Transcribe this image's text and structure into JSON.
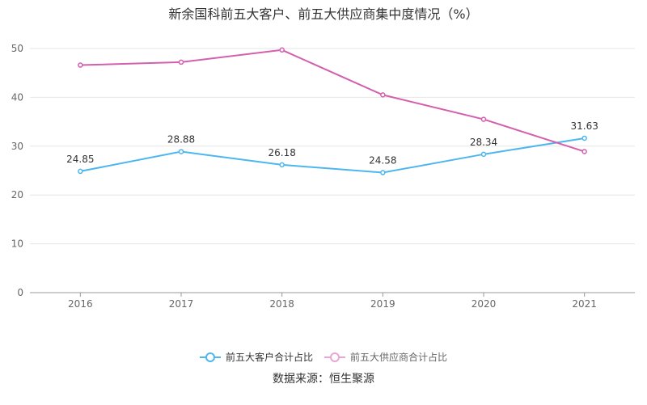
{
  "chart_data": {
    "type": "line",
    "title": "新余国科前五大客户、前五大供应商集中度情况（%）",
    "categories": [
      "2016",
      "2017",
      "2018",
      "2019",
      "2020",
      "2021"
    ],
    "ylim": [
      0,
      50
    ],
    "yticks": [
      0,
      10,
      20,
      30,
      40,
      50
    ],
    "grid": true,
    "legend_position": "bottom",
    "series": [
      {
        "name": "前五大客户合计占比",
        "color": "#4db6ef",
        "values": [
          24.85,
          28.88,
          26.18,
          24.58,
          28.34,
          31.63
        ],
        "labels": [
          "24.85",
          "28.88",
          "26.18",
          "24.58",
          "28.34",
          "31.63"
        ],
        "show_labels": true
      },
      {
        "name": "前五大供应商合计占比",
        "color": "#d45fae",
        "values": [
          46.6,
          47.2,
          49.7,
          40.5,
          35.5,
          28.9
        ],
        "show_labels": false
      }
    ]
  },
  "source": "数据来源：恒生聚源"
}
